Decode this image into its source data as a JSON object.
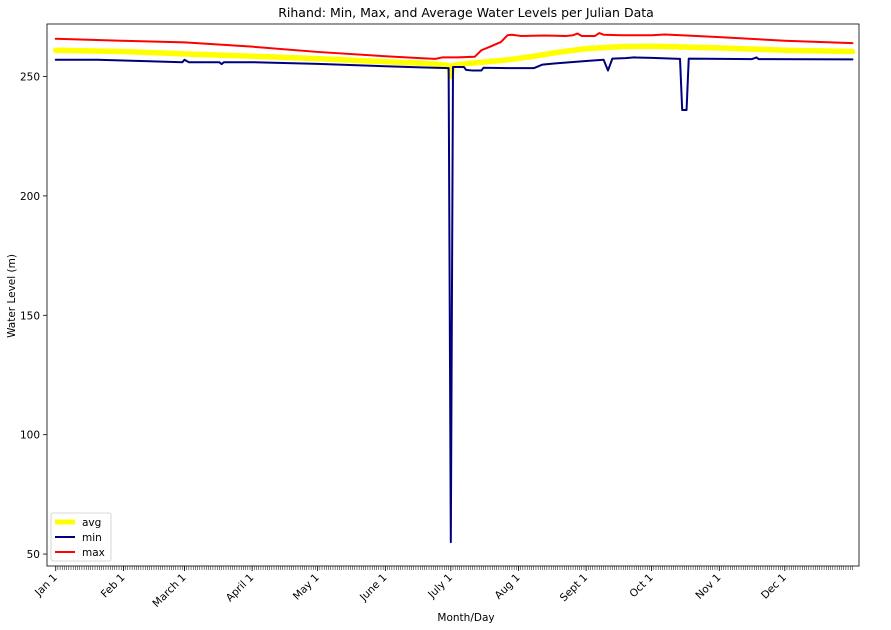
{
  "chart_data": {
    "type": "line",
    "title": "Rihand: Min, Max, and Average Water Levels per Julian Data",
    "xlabel": "Month/Day",
    "ylabel": "Water Level (m)",
    "ylim": [
      45,
      272
    ],
    "yticks": [
      50,
      100,
      150,
      200,
      250
    ],
    "xlim": [
      -3,
      369
    ],
    "month_ticks": [
      {
        "label": "Jan 1",
        "day": 1
      },
      {
        "label": "Feb 1",
        "day": 32
      },
      {
        "label": "March 1",
        "day": 60
      },
      {
        "label": "April 1",
        "day": 91
      },
      {
        "label": "May 1",
        "day": 121
      },
      {
        "label": "June 1",
        "day": 152
      },
      {
        "label": "July 1",
        "day": 182
      },
      {
        "label": "Aug 1",
        "day": 213
      },
      {
        "label": "Sept 1",
        "day": 244
      },
      {
        "label": "Oct 1",
        "day": 274
      },
      {
        "label": "Nov 1",
        "day": 305
      },
      {
        "label": "Dec 1",
        "day": 335
      }
    ],
    "minor_ticks_daily": true,
    "grid": false,
    "legend_position": "lower-left",
    "series": [
      {
        "name": "avg",
        "color": "#ffff00",
        "style": "thick",
        "points": [
          [
            1,
            261
          ],
          [
            31,
            260.5
          ],
          [
            60,
            259.5
          ],
          [
            91,
            258.5
          ],
          [
            121,
            257.5
          ],
          [
            152,
            256.2
          ],
          [
            170,
            255.5
          ],
          [
            178,
            255
          ],
          [
            181,
            254.6
          ],
          [
            182,
            250
          ],
          [
            183,
            254.6
          ],
          [
            185,
            255
          ],
          [
            190,
            255.5
          ],
          [
            200,
            256.3
          ],
          [
            210,
            257.2
          ],
          [
            220,
            258.5
          ],
          [
            230,
            260
          ],
          [
            244,
            261.7
          ],
          [
            260,
            262.5
          ],
          [
            274,
            262.7
          ],
          [
            290,
            262.3
          ],
          [
            305,
            262
          ],
          [
            320,
            261.5
          ],
          [
            335,
            261
          ],
          [
            366,
            260.5
          ]
        ]
      },
      {
        "name": "min",
        "color": "#00007f",
        "style": "normal",
        "points": [
          [
            1,
            257
          ],
          [
            20,
            257
          ],
          [
            40,
            256.5
          ],
          [
            59,
            256
          ],
          [
            60,
            257
          ],
          [
            61,
            256.5
          ],
          [
            62,
            256
          ],
          [
            76,
            256
          ],
          [
            77,
            255.2
          ],
          [
            78,
            256
          ],
          [
            91,
            256
          ],
          [
            121,
            255.3
          ],
          [
            152,
            254.3
          ],
          [
            170,
            253.8
          ],
          [
            181,
            253.5
          ],
          [
            182,
            55
          ],
          [
            183,
            254
          ],
          [
            185,
            254
          ],
          [
            188,
            254
          ],
          [
            189,
            252.8
          ],
          [
            192,
            252.5
          ],
          [
            196,
            252.5
          ],
          [
            197,
            253.7
          ],
          [
            210,
            253.5
          ],
          [
            220,
            253.5
          ],
          [
            224,
            255
          ],
          [
            230,
            255.5
          ],
          [
            244,
            256.5
          ],
          [
            252,
            257
          ],
          [
            254,
            252.5
          ],
          [
            256,
            257.5
          ],
          [
            262,
            257.7
          ],
          [
            266,
            258
          ],
          [
            274,
            257.8
          ],
          [
            287,
            257.4
          ],
          [
            288,
            236
          ],
          [
            290,
            236
          ],
          [
            291,
            257.5
          ],
          [
            320,
            257.3
          ],
          [
            322,
            258
          ],
          [
            323,
            257.3
          ],
          [
            366,
            257.2
          ]
        ]
      },
      {
        "name": "max",
        "color": "#ff0000",
        "style": "normal",
        "points": [
          [
            1,
            265.8
          ],
          [
            31,
            265
          ],
          [
            60,
            264.3
          ],
          [
            91,
            262.5
          ],
          [
            121,
            260.3
          ],
          [
            152,
            258.5
          ],
          [
            170,
            257.6
          ],
          [
            175,
            257.4
          ],
          [
            178,
            258
          ],
          [
            185,
            258
          ],
          [
            193,
            258.3
          ],
          [
            196,
            261
          ],
          [
            200,
            262.5
          ],
          [
            205,
            264.5
          ],
          [
            208,
            267.3
          ],
          [
            210,
            267.5
          ],
          [
            214,
            267
          ],
          [
            225,
            267.2
          ],
          [
            235,
            267
          ],
          [
            238,
            267.3
          ],
          [
            240,
            268
          ],
          [
            242,
            267
          ],
          [
            248,
            267
          ],
          [
            250,
            268.2
          ],
          [
            252,
            267.5
          ],
          [
            260,
            267.3
          ],
          [
            274,
            267.3
          ],
          [
            280,
            267.6
          ],
          [
            290,
            267.2
          ],
          [
            305,
            266.5
          ],
          [
            335,
            265
          ],
          [
            366,
            264
          ]
        ]
      }
    ]
  }
}
